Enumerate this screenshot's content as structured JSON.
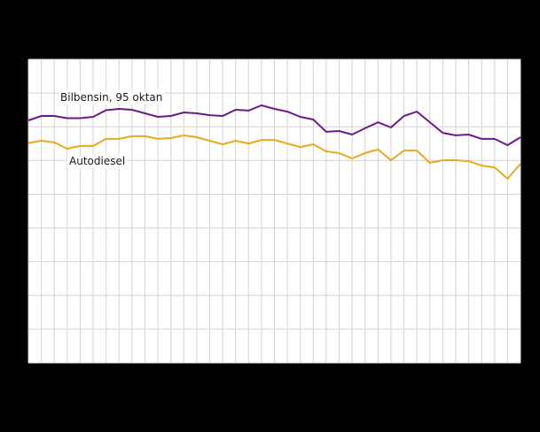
{
  "chart_data": {
    "type": "line",
    "title": "",
    "xlabel": "",
    "ylabel": "",
    "ylim": [
      0,
      18
    ],
    "y_gridlines": 9,
    "x_points": 39,
    "grid": true,
    "legend": "inline labels",
    "x": [
      1,
      2,
      3,
      4,
      5,
      6,
      7,
      8,
      9,
      10,
      11,
      12,
      13,
      14,
      15,
      16,
      17,
      18,
      19,
      20,
      21,
      22,
      23,
      24,
      25,
      26,
      27,
      28,
      29,
      30,
      31,
      32,
      33,
      34,
      35,
      36,
      37,
      38,
      39
    ],
    "series": [
      {
        "name": "Bilbensin, 95 oktan",
        "color": "#6b1a8c",
        "values": [
          14.38,
          14.64,
          14.64,
          14.51,
          14.51,
          14.59,
          14.98,
          15.06,
          15.01,
          14.8,
          14.59,
          14.64,
          14.85,
          14.8,
          14.69,
          14.64,
          15.01,
          14.96,
          15.27,
          15.06,
          14.9,
          14.59,
          14.43,
          13.7,
          13.75,
          13.54,
          13.91,
          14.27,
          13.96,
          14.64,
          14.9,
          14.27,
          13.64,
          13.49,
          13.54,
          13.28,
          13.28,
          12.91,
          13.38
        ]
      },
      {
        "name": "Autodiesel",
        "color": "#e9a920",
        "values": [
          13.04,
          13.17,
          13.07,
          12.7,
          12.86,
          12.86,
          13.28,
          13.28,
          13.44,
          13.44,
          13.28,
          13.33,
          13.49,
          13.38,
          13.17,
          12.96,
          13.17,
          13.01,
          13.22,
          13.22,
          13.01,
          12.8,
          12.96,
          12.54,
          12.44,
          12.12,
          12.44,
          12.65,
          12.02,
          12.59,
          12.59,
          11.86,
          12.02,
          12.02,
          11.96,
          11.7,
          11.6,
          10.92,
          11.81
        ]
      }
    ]
  },
  "labels": {
    "bilbensin": "Bilbensin,  95 oktan",
    "autodiesel": "Autodiesel"
  },
  "colors": {
    "background": "#000000",
    "plot_background": "#ffffff",
    "grid": "#d4d4d4"
  }
}
